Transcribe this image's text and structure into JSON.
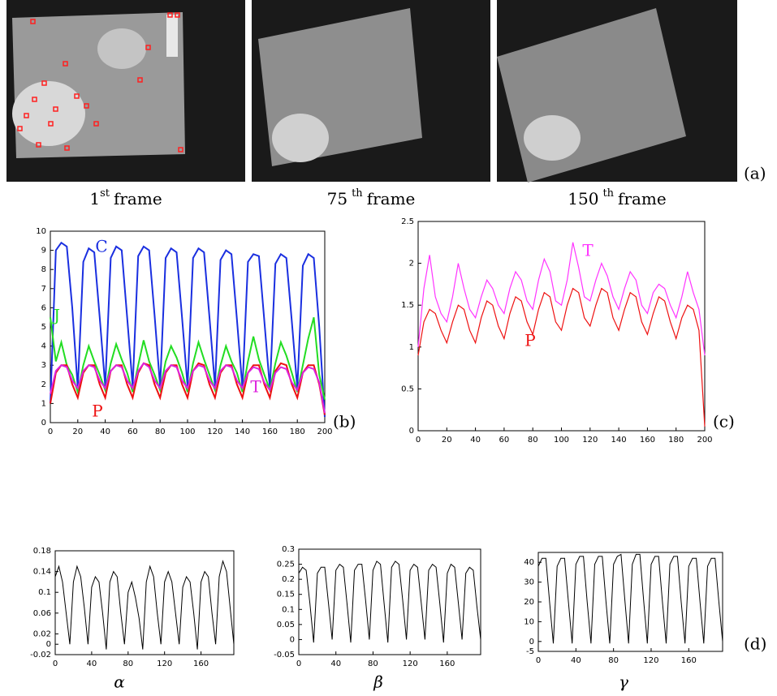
{
  "figure": {
    "images": [
      {
        "number": "1",
        "suffix": "st",
        "rest": "frame"
      },
      {
        "number": "75",
        "suffix": "th",
        "rest": "frame"
      },
      {
        "number": "150",
        "suffix": "th",
        "rest": "frame"
      }
    ],
    "panel_labels": [
      "(a)",
      "(b)",
      "(c)",
      "(d)"
    ]
  },
  "chart_data": [
    {
      "type": "line",
      "x": [
        0,
        4,
        8,
        12,
        16,
        20,
        24,
        28,
        32,
        36,
        40,
        44,
        48,
        52,
        56,
        60,
        64,
        68,
        72,
        76,
        80,
        84,
        88,
        92,
        96,
        100,
        104,
        108,
        112,
        116,
        120,
        124,
        128,
        132,
        136,
        140,
        144,
        148,
        152,
        156,
        160,
        164,
        168,
        172,
        176,
        180,
        184,
        188,
        192,
        196,
        200
      ],
      "xlim": [
        0,
        200
      ],
      "xticks": [
        0,
        20,
        40,
        60,
        80,
        100,
        120,
        140,
        160,
        180,
        200
      ],
      "ylim": [
        0,
        10
      ],
      "yticks": [
        0,
        1,
        2,
        3,
        4,
        5,
        6,
        7,
        8,
        9,
        10
      ],
      "series": [
        {
          "name": "C",
          "color": "#1a2fe0",
          "values": [
            1.0,
            9.0,
            9.4,
            9.2,
            6.0,
            1.8,
            8.4,
            9.1,
            8.9,
            5.5,
            1.9,
            8.6,
            9.2,
            9.0,
            5.5,
            1.9,
            8.7,
            9.2,
            9.0,
            5.6,
            1.9,
            8.6,
            9.1,
            8.9,
            5.5,
            1.9,
            8.6,
            9.1,
            8.9,
            5.5,
            1.9,
            8.5,
            9.0,
            8.8,
            5.4,
            1.8,
            8.4,
            8.8,
            8.7,
            5.3,
            1.8,
            8.3,
            8.8,
            8.6,
            5.3,
            1.8,
            8.2,
            8.8,
            8.6,
            5.0,
            0.3
          ]
        },
        {
          "name": "J",
          "color": "#22dd22",
          "values": [
            5.5,
            3.2,
            4.2,
            3.0,
            2.5,
            1.6,
            3.0,
            4.0,
            3.2,
            2.5,
            1.7,
            3.1,
            4.1,
            3.3,
            2.6,
            1.6,
            3.0,
            4.3,
            3.2,
            2.5,
            1.7,
            3.2,
            4.0,
            3.4,
            2.6,
            1.6,
            3.1,
            4.2,
            3.3,
            2.5,
            1.7,
            3.0,
            4.0,
            3.2,
            2.6,
            1.6,
            3.2,
            4.5,
            3.3,
            2.5,
            1.7,
            3.1,
            4.2,
            3.5,
            2.6,
            1.6,
            3.0,
            4.4,
            5.5,
            2.5,
            1.2
          ]
        },
        {
          "name": "P",
          "color": "#ee1111",
          "values": [
            1.0,
            2.6,
            3.0,
            3.0,
            2.0,
            1.3,
            2.6,
            3.0,
            3.0,
            2.0,
            1.3,
            2.7,
            3.0,
            3.0,
            2.0,
            1.3,
            2.6,
            3.1,
            3.0,
            2.0,
            1.3,
            2.6,
            3.0,
            3.0,
            2.0,
            1.3,
            2.7,
            3.1,
            3.0,
            2.0,
            1.3,
            2.6,
            3.0,
            3.0,
            2.0,
            1.3,
            2.6,
            3.0,
            3.0,
            2.0,
            1.3,
            2.7,
            3.1,
            3.0,
            2.0,
            1.3,
            2.6,
            3.0,
            3.0,
            2.0,
            0.4
          ]
        },
        {
          "name": "T",
          "color": "#dd22dd",
          "values": [
            1.5,
            2.7,
            3.0,
            2.9,
            2.2,
            1.8,
            2.7,
            3.0,
            2.9,
            2.2,
            1.8,
            2.7,
            3.0,
            2.9,
            2.2,
            1.8,
            2.7,
            3.1,
            2.9,
            2.2,
            1.8,
            2.7,
            3.0,
            2.9,
            2.2,
            1.8,
            2.7,
            3.0,
            2.9,
            2.2,
            1.8,
            2.7,
            3.0,
            2.9,
            2.2,
            1.8,
            2.6,
            2.9,
            2.8,
            2.1,
            1.7,
            2.6,
            2.9,
            2.8,
            2.1,
            1.7,
            2.6,
            2.9,
            2.8,
            2.1,
            0.5
          ]
        }
      ]
    },
    {
      "type": "line",
      "x": [
        0,
        4,
        8,
        12,
        16,
        20,
        24,
        28,
        32,
        36,
        40,
        44,
        48,
        52,
        56,
        60,
        64,
        68,
        72,
        76,
        80,
        84,
        88,
        92,
        96,
        100,
        104,
        108,
        112,
        116,
        120,
        124,
        128,
        132,
        136,
        140,
        144,
        148,
        152,
        156,
        160,
        164,
        168,
        172,
        176,
        180,
        184,
        188,
        192,
        196,
        200
      ],
      "xlim": [
        0,
        200
      ],
      "xticks": [
        0,
        20,
        40,
        60,
        80,
        100,
        120,
        140,
        160,
        180,
        200
      ],
      "ylim": [
        0,
        2.5
      ],
      "yticks": [
        0,
        0.5,
        1,
        1.5,
        2,
        2.5
      ],
      "series": [
        {
          "name": "T",
          "color": "#ff33ff",
          "values": [
            1.0,
            1.7,
            2.1,
            1.6,
            1.4,
            1.3,
            1.6,
            2.0,
            1.7,
            1.45,
            1.35,
            1.6,
            1.8,
            1.7,
            1.5,
            1.4,
            1.7,
            1.9,
            1.8,
            1.55,
            1.45,
            1.8,
            2.05,
            1.9,
            1.55,
            1.5,
            1.8,
            2.25,
            1.95,
            1.6,
            1.55,
            1.8,
            2.0,
            1.85,
            1.6,
            1.45,
            1.7,
            1.9,
            1.8,
            1.5,
            1.4,
            1.65,
            1.75,
            1.7,
            1.5,
            1.35,
            1.6,
            1.9,
            1.65,
            1.45,
            0.9
          ]
        },
        {
          "name": "P",
          "color": "#ee1111",
          "values": [
            0.9,
            1.3,
            1.45,
            1.4,
            1.2,
            1.05,
            1.3,
            1.5,
            1.45,
            1.2,
            1.05,
            1.35,
            1.55,
            1.5,
            1.25,
            1.1,
            1.4,
            1.6,
            1.55,
            1.3,
            1.15,
            1.45,
            1.65,
            1.6,
            1.3,
            1.2,
            1.5,
            1.7,
            1.65,
            1.35,
            1.25,
            1.5,
            1.7,
            1.65,
            1.35,
            1.2,
            1.45,
            1.65,
            1.6,
            1.3,
            1.15,
            1.4,
            1.6,
            1.55,
            1.3,
            1.1,
            1.35,
            1.5,
            1.45,
            1.2,
            0.05
          ]
        }
      ]
    },
    {
      "type": "line",
      "x_label": "α",
      "x": [
        0,
        4,
        8,
        12,
        16,
        20,
        24,
        28,
        32,
        36,
        40,
        44,
        48,
        52,
        56,
        60,
        64,
        68,
        72,
        76,
        80,
        84,
        88,
        92,
        96,
        100,
        104,
        108,
        112,
        116,
        120,
        124,
        128,
        132,
        136,
        140,
        144,
        148,
        152,
        156,
        160,
        164,
        168,
        172,
        176,
        180,
        184,
        188,
        192,
        196
      ],
      "xlim": [
        0,
        196
      ],
      "xticks": [
        0,
        40,
        80,
        120,
        160
      ],
      "ylim": [
        -0.02,
        0.18
      ],
      "yticks": [
        -0.02,
        0,
        0.02,
        0.06,
        0.1,
        0.14,
        0.18
      ],
      "series": [
        {
          "color": "#000000",
          "values": [
            0.13,
            0.15,
            0.12,
            0.06,
            0.0,
            0.12,
            0.15,
            0.13,
            0.07,
            0.0,
            0.11,
            0.13,
            0.12,
            0.06,
            -0.01,
            0.12,
            0.14,
            0.13,
            0.06,
            0.0,
            0.1,
            0.12,
            0.09,
            0.05,
            -0.01,
            0.12,
            0.15,
            0.13,
            0.06,
            0.0,
            0.12,
            0.14,
            0.12,
            0.06,
            0.0,
            0.11,
            0.13,
            0.12,
            0.06,
            -0.01,
            0.12,
            0.14,
            0.13,
            0.06,
            0.0,
            0.13,
            0.16,
            0.14,
            0.07,
            0.0
          ]
        }
      ]
    },
    {
      "type": "line",
      "x_label": "β",
      "x": [
        0,
        4,
        8,
        12,
        16,
        20,
        24,
        28,
        32,
        36,
        40,
        44,
        48,
        52,
        56,
        60,
        64,
        68,
        72,
        76,
        80,
        84,
        88,
        92,
        96,
        100,
        104,
        108,
        112,
        116,
        120,
        124,
        128,
        132,
        136,
        140,
        144,
        148,
        152,
        156,
        160,
        164,
        168,
        172,
        176,
        180,
        184,
        188,
        192,
        196
      ],
      "xlim": [
        0,
        196
      ],
      "xticks": [
        0,
        40,
        80,
        120,
        160
      ],
      "ylim": [
        -0.05,
        0.3
      ],
      "yticks": [
        -0.05,
        0,
        0.05,
        0.1,
        0.15,
        0.2,
        0.25,
        0.3
      ],
      "series": [
        {
          "color": "#000000",
          "values": [
            0.22,
            0.24,
            0.23,
            0.12,
            -0.01,
            0.22,
            0.24,
            0.24,
            0.12,
            0.0,
            0.23,
            0.25,
            0.24,
            0.12,
            -0.01,
            0.23,
            0.25,
            0.25,
            0.13,
            0.0,
            0.23,
            0.26,
            0.25,
            0.12,
            -0.01,
            0.24,
            0.26,
            0.25,
            0.13,
            0.0,
            0.23,
            0.25,
            0.24,
            0.12,
            0.0,
            0.23,
            0.25,
            0.24,
            0.12,
            -0.01,
            0.22,
            0.25,
            0.24,
            0.12,
            0.0,
            0.22,
            0.24,
            0.23,
            0.11,
            0.0
          ]
        }
      ]
    },
    {
      "type": "line",
      "x_label": "γ",
      "x": [
        0,
        4,
        8,
        12,
        16,
        20,
        24,
        28,
        32,
        36,
        40,
        44,
        48,
        52,
        56,
        60,
        64,
        68,
        72,
        76,
        80,
        84,
        88,
        92,
        96,
        100,
        104,
        108,
        112,
        116,
        120,
        124,
        128,
        132,
        136,
        140,
        144,
        148,
        152,
        156,
        160,
        164,
        168,
        172,
        176,
        180,
        184,
        188,
        192,
        196
      ],
      "xlim": [
        0,
        196
      ],
      "xticks": [
        0,
        40,
        80,
        120,
        160
      ],
      "ylim": [
        -5,
        45
      ],
      "yticks": [
        -5,
        0,
        10,
        20,
        30,
        40
      ],
      "series": [
        {
          "color": "#000000",
          "values": [
            38,
            42,
            42,
            20,
            -1,
            38,
            42,
            42,
            20,
            -1,
            39,
            43,
            43,
            20,
            -1,
            39,
            43,
            43,
            20,
            -1,
            39,
            43,
            44,
            21,
            -1,
            39,
            44,
            44,
            21,
            -1,
            39,
            43,
            43,
            20,
            -1,
            39,
            43,
            43,
            20,
            -1,
            38,
            42,
            42,
            20,
            -1,
            38,
            42,
            42,
            20,
            0
          ]
        }
      ]
    }
  ]
}
